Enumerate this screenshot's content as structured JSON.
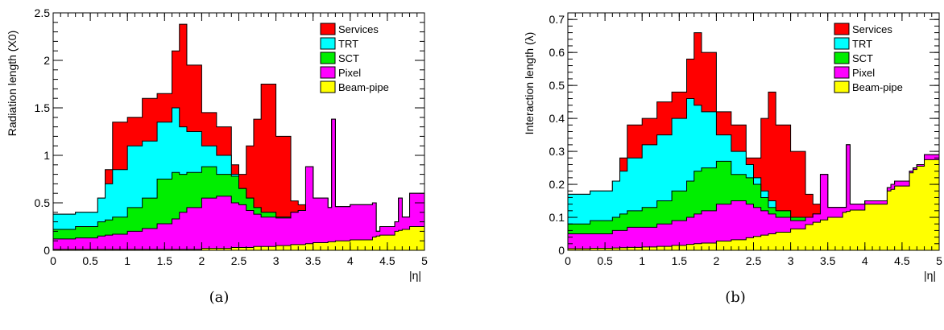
{
  "colors": {
    "Services": "#ff0000",
    "TRT": "#00ffff",
    "SCT": "#00ee00",
    "Pixel": "#ff00ff",
    "Beam-pipe": "#ffff00"
  },
  "chart_data": [
    {
      "type": "area",
      "caption": "(a)",
      "ylabel": "Radiation length (X0)",
      "xlabel": "|η|",
      "xlim": [
        0,
        5
      ],
      "ylim": [
        0,
        2.5
      ],
      "xticks": [
        "0",
        "0.5",
        "1",
        "1.5",
        "2",
        "2.5",
        "3",
        "3.5",
        "4",
        "4.5",
        "5"
      ],
      "yticks": [
        "0",
        "0.5",
        "1",
        "1.5",
        "2",
        "2.5"
      ],
      "legend_position": "top-right",
      "x": [
        0,
        0.3,
        0.6,
        0.7,
        0.8,
        1.0,
        1.2,
        1.4,
        1.6,
        1.7,
        1.8,
        2.0,
        2.2,
        2.4,
        2.5,
        2.6,
        2.7,
        2.8,
        3.0,
        3.2,
        3.3,
        3.4,
        3.5,
        3.7,
        3.75,
        3.8,
        4.0,
        4.3,
        4.35,
        4.4,
        4.6,
        4.65,
        4.7,
        4.8,
        5.0
      ],
      "series": [
        {
          "name": "Beam-pipe",
          "values": [
            0.01,
            0.01,
            0.01,
            0.01,
            0.01,
            0.01,
            0.01,
            0.01,
            0.01,
            0.01,
            0.01,
            0.02,
            0.02,
            0.03,
            0.03,
            0.03,
            0.04,
            0.04,
            0.05,
            0.06,
            0.06,
            0.07,
            0.08,
            0.09,
            0.09,
            0.1,
            0.11,
            0.14,
            0.15,
            0.16,
            0.2,
            0.21,
            0.22,
            0.25,
            0.32
          ]
        },
        {
          "name": "Pixel",
          "values": [
            0.12,
            0.13,
            0.15,
            0.16,
            0.17,
            0.2,
            0.23,
            0.28,
            0.33,
            0.4,
            0.45,
            0.55,
            0.57,
            0.5,
            0.48,
            0.42,
            0.38,
            0.35,
            0.34,
            0.4,
            0.42,
            0.88,
            0.55,
            0.45,
            1.38,
            0.46,
            0.48,
            0.5,
            0.2,
            0.25,
            0.3,
            0.55,
            0.35,
            0.6,
            0.35
          ]
        },
        {
          "name": "SCT",
          "values": [
            0.22,
            0.25,
            0.3,
            0.32,
            0.35,
            0.45,
            0.55,
            0.75,
            0.82,
            0.8,
            0.82,
            0.88,
            0.8,
            0.78,
            0.65,
            0.55,
            0.45,
            0.4,
            0.35,
            0.4,
            0.42,
            0.88,
            0.55,
            0.45,
            1.38,
            0.46,
            0.48,
            0.5,
            0.2,
            0.25,
            0.3,
            0.55,
            0.35,
            0.6,
            0.35
          ]
        },
        {
          "name": "TRT",
          "values": [
            0.38,
            0.4,
            0.55,
            0.7,
            0.85,
            1.1,
            1.15,
            1.35,
            1.5,
            1.3,
            1.25,
            1.1,
            1.0,
            0.8,
            0.65,
            0.55,
            0.45,
            0.4,
            0.35,
            0.4,
            0.42,
            0.88,
            0.55,
            0.45,
            1.38,
            0.46,
            0.48,
            0.5,
            0.2,
            0.25,
            0.3,
            0.55,
            0.35,
            0.6,
            0.35
          ]
        },
        {
          "name": "Services",
          "values": [
            0.38,
            0.4,
            0.55,
            0.85,
            1.35,
            1.4,
            1.6,
            1.65,
            2.1,
            2.38,
            1.95,
            1.45,
            1.3,
            0.9,
            0.8,
            1.1,
            1.38,
            1.75,
            1.2,
            0.52,
            0.48,
            0.88,
            0.55,
            0.45,
            1.38,
            0.46,
            0.48,
            0.5,
            0.2,
            0.25,
            0.3,
            0.55,
            0.35,
            0.6,
            0.35
          ]
        }
      ]
    },
    {
      "type": "area",
      "caption": "(b)",
      "ylabel": "Interaction length (λ)",
      "xlabel": "|η|",
      "xlim": [
        0,
        5
      ],
      "ylim": [
        0,
        0.72
      ],
      "xticks": [
        "0",
        "0.5",
        "1",
        "1.5",
        "2",
        "2.5",
        "3",
        "3.5",
        "4",
        "4.5",
        "5"
      ],
      "yticks": [
        "0",
        "0.1",
        "0.2",
        "0.3",
        "0.4",
        "0.5",
        "0.6",
        "0.7"
      ],
      "legend_position": "top-right",
      "x": [
        0,
        0.3,
        0.6,
        0.7,
        0.8,
        1.0,
        1.2,
        1.4,
        1.6,
        1.7,
        1.8,
        2.0,
        2.2,
        2.4,
        2.5,
        2.6,
        2.7,
        2.8,
        3.0,
        3.2,
        3.3,
        3.4,
        3.5,
        3.7,
        3.75,
        3.8,
        4.0,
        4.3,
        4.35,
        4.4,
        4.6,
        4.65,
        4.7,
        4.8,
        5.0
      ],
      "series": [
        {
          "name": "Beam-pipe",
          "values": [
            0.005,
            0.006,
            0.007,
            0.008,
            0.009,
            0.01,
            0.012,
            0.015,
            0.018,
            0.02,
            0.022,
            0.028,
            0.032,
            0.038,
            0.042,
            0.046,
            0.05,
            0.055,
            0.065,
            0.078,
            0.085,
            0.092,
            0.1,
            0.115,
            0.118,
            0.122,
            0.14,
            0.18,
            0.185,
            0.195,
            0.235,
            0.245,
            0.255,
            0.275,
            0.31
          ]
        },
        {
          "name": "Pixel",
          "values": [
            0.05,
            0.05,
            0.06,
            0.06,
            0.07,
            0.07,
            0.08,
            0.09,
            0.1,
            0.11,
            0.12,
            0.14,
            0.15,
            0.14,
            0.13,
            0.12,
            0.11,
            0.1,
            0.09,
            0.1,
            0.11,
            0.23,
            0.13,
            0.13,
            0.32,
            0.14,
            0.15,
            0.19,
            0.2,
            0.21,
            0.24,
            0.25,
            0.26,
            0.29,
            0.32
          ]
        },
        {
          "name": "SCT",
          "values": [
            0.08,
            0.09,
            0.1,
            0.11,
            0.12,
            0.13,
            0.15,
            0.18,
            0.21,
            0.24,
            0.25,
            0.27,
            0.23,
            0.22,
            0.2,
            0.16,
            0.13,
            0.12,
            0.1,
            0.1,
            0.11,
            0.23,
            0.13,
            0.13,
            0.32,
            0.14,
            0.15,
            0.19,
            0.2,
            0.21,
            0.24,
            0.25,
            0.26,
            0.29,
            0.32
          ]
        },
        {
          "name": "TRT",
          "values": [
            0.17,
            0.18,
            0.21,
            0.24,
            0.28,
            0.32,
            0.35,
            0.4,
            0.46,
            0.44,
            0.42,
            0.35,
            0.3,
            0.26,
            0.22,
            0.18,
            0.15,
            0.12,
            0.1,
            0.1,
            0.11,
            0.23,
            0.13,
            0.13,
            0.32,
            0.14,
            0.15,
            0.19,
            0.2,
            0.21,
            0.24,
            0.25,
            0.26,
            0.29,
            0.32
          ]
        },
        {
          "name": "Services",
          "values": [
            0.17,
            0.18,
            0.21,
            0.28,
            0.38,
            0.4,
            0.45,
            0.48,
            0.58,
            0.66,
            0.6,
            0.42,
            0.38,
            0.28,
            0.28,
            0.4,
            0.48,
            0.38,
            0.3,
            0.17,
            0.14,
            0.23,
            0.13,
            0.13,
            0.32,
            0.14,
            0.15,
            0.19,
            0.2,
            0.21,
            0.24,
            0.25,
            0.26,
            0.29,
            0.32
          ]
        }
      ]
    }
  ]
}
